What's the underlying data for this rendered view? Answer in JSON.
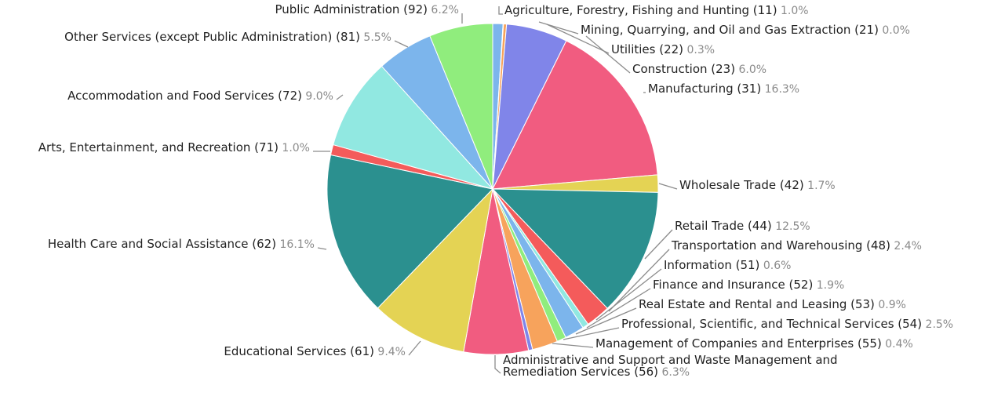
{
  "chart_data": {
    "type": "pie",
    "title": "",
    "slices": [
      {
        "label": "Agriculture, Forestry, Fishing and Hunting (11)",
        "pct_text": "1.0%",
        "value": 1.0,
        "color": "#7cb5ec"
      },
      {
        "label": "Mining, Quarrying, and Oil and Gas Extraction (21)",
        "pct_text": "0.0%",
        "value": 0.04,
        "color": "#434348"
      },
      {
        "label": "Utilities (22)",
        "pct_text": "0.3%",
        "value": 0.3,
        "color": "#f7a35c"
      },
      {
        "label": "Construction (23)",
        "pct_text": "6.0%",
        "value": 6.0,
        "color": "#8085e9"
      },
      {
        "label": "Manufacturing (31)",
        "pct_text": "16.3%",
        "value": 16.3,
        "color": "#f15c80"
      },
      {
        "label": "Wholesale Trade (42)",
        "pct_text": "1.7%",
        "value": 1.7,
        "color": "#e4d354"
      },
      {
        "label": "Retail Trade (44)",
        "pct_text": "12.5%",
        "value": 12.5,
        "color": "#2b908f"
      },
      {
        "label": "Transportation and Warehousing (48)",
        "pct_text": "2.4%",
        "value": 2.4,
        "color": "#f45b5b"
      },
      {
        "label": "Information (51)",
        "pct_text": "0.6%",
        "value": 0.6,
        "color": "#91e8e1"
      },
      {
        "label": "Finance and Insurance (52)",
        "pct_text": "1.9%",
        "value": 1.9,
        "color": "#7cb5ec"
      },
      {
        "label": "Real Estate and Rental and Leasing (53)",
        "pct_text": "0.9%",
        "value": 0.9,
        "color": "#90ed7d"
      },
      {
        "label": "Professional, Scientific, and Technical Services (54)",
        "pct_text": "2.5%",
        "value": 2.5,
        "color": "#f7a35c"
      },
      {
        "label": "Management of Companies and Enterprises (55)",
        "pct_text": "0.4%",
        "value": 0.4,
        "color": "#8085e9"
      },
      {
        "label": "Administrative and Support and Waste Management and Remediation Services (56)",
        "label_lines": [
          "Administrative and Support and Waste Management and",
          "Remediation Services (56)"
        ],
        "pct_text": "6.3%",
        "value": 6.3,
        "color": "#f15c80"
      },
      {
        "label": "Educational Services (61)",
        "pct_text": "9.4%",
        "value": 9.4,
        "color": "#e4d354"
      },
      {
        "label": "Health Care and Social Assistance (62)",
        "pct_text": "16.1%",
        "value": 16.1,
        "color": "#2b908f"
      },
      {
        "label": "Arts, Entertainment, and Recreation (71)",
        "pct_text": "1.0%",
        "value": 1.0,
        "color": "#f45b5b"
      },
      {
        "label": "Accommodation and Food Services (72)",
        "pct_text": "9.0%",
        "value": 9.0,
        "color": "#91e8e1"
      },
      {
        "label": "Other Services (except Public Administration) (81)",
        "pct_text": "5.5%",
        "value": 5.5,
        "color": "#7cb5ec"
      },
      {
        "label": "Public Administration (92)",
        "pct_text": "6.2%",
        "value": 6.2,
        "color": "#90ed7d"
      }
    ]
  }
}
